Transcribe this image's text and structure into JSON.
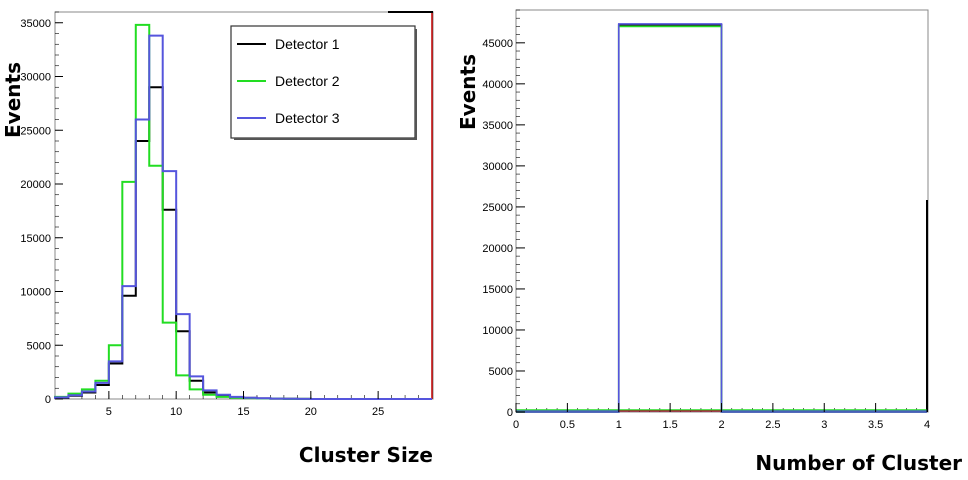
{
  "chart_data": [
    {
      "type": "histogram",
      "xlabel": "Cluster Size",
      "ylabel": "Events",
      "xlim": [
        1,
        29
      ],
      "ylim": [
        0,
        36000
      ],
      "xticks": [
        5,
        10,
        15,
        20,
        25
      ],
      "yticks": [
        0,
        5000,
        10000,
        15000,
        20000,
        25000,
        30000,
        35000
      ],
      "bin_edges": [
        1,
        2,
        3,
        4,
        5,
        6,
        7,
        8,
        9,
        10,
        11,
        12,
        13,
        14,
        15,
        16,
        17,
        18,
        19,
        20,
        21,
        22,
        23,
        24,
        25,
        26,
        27,
        28,
        29
      ],
      "legend": {
        "position": "top-right",
        "entries": [
          "Detector 1",
          "Detector 2",
          "Detector 3"
        ]
      },
      "series": [
        {
          "name": "Detector 1",
          "color": "#000000",
          "values": [
            100,
            300,
            600,
            1300,
            3300,
            9600,
            24000,
            29000,
            17600,
            6300,
            1700,
            600,
            300,
            150,
            100,
            60,
            40,
            20,
            10,
            5,
            0,
            0,
            0,
            0,
            0,
            0,
            0,
            0
          ]
        },
        {
          "name": "Detector 2",
          "color": "#22dd22",
          "values": [
            200,
            500,
            900,
            1700,
            5000,
            20200,
            34800,
            21700,
            7100,
            2200,
            900,
            400,
            200,
            120,
            80,
            50,
            30,
            15,
            10,
            5,
            0,
            0,
            0,
            0,
            0,
            0,
            0,
            0
          ]
        },
        {
          "name": "Detector 3",
          "color": "#5555dd",
          "values": [
            150,
            350,
            700,
            1500,
            3500,
            10500,
            26000,
            33800,
            21200,
            7900,
            2100,
            800,
            400,
            200,
            120,
            70,
            40,
            20,
            10,
            5,
            0,
            0,
            0,
            0,
            0,
            0,
            0,
            0
          ]
        }
      ]
    },
    {
      "type": "histogram",
      "xlabel": "Number of Cluster",
      "ylabel": "Events",
      "xlim": [
        0,
        4
      ],
      "ylim": [
        0,
        49000
      ],
      "xticks": [
        "0",
        "0.5",
        "1",
        "1.5",
        "2",
        "2.5",
        "3",
        "3.5",
        "4"
      ],
      "yticks": [
        "0",
        "5000",
        "10000",
        "15000",
        "20000",
        "25000",
        "30000",
        "35000",
        "40000",
        "45000"
      ],
      "bin_edges": [
        0,
        1,
        2,
        4
      ],
      "series": [
        {
          "name": "Detector 1",
          "color": "#000000",
          "values": [
            0,
            47200,
            0
          ]
        },
        {
          "name": "Detector 2",
          "color": "#22dd22",
          "values": [
            0,
            47000,
            0
          ]
        },
        {
          "name": "Detector 3",
          "color": "#5555dd",
          "values": [
            0,
            47300,
            0
          ]
        }
      ]
    }
  ]
}
